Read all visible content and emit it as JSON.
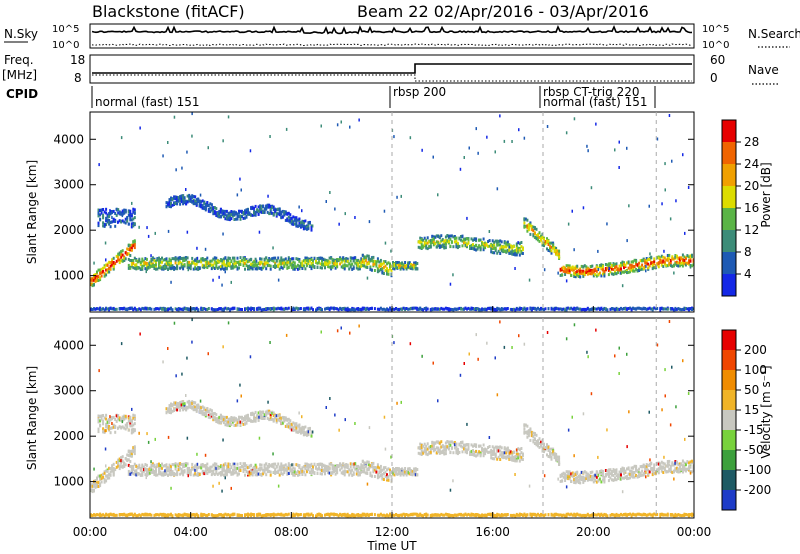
{
  "header": {
    "title_left": "Blackstone (fitACF)",
    "title_right": "Beam 22  02/Apr/2016 - 03/Apr/2016"
  },
  "noise": {
    "left_label": "N.Sky",
    "right_label": "N.Search",
    "tick_top": "10^5",
    "tick_bottom": "10^0"
  },
  "freq": {
    "left_label_1": "Freq.",
    "left_label_2": "[MHz]",
    "right_label": "Nave",
    "left_ticks": [
      "18",
      "8"
    ],
    "right_ticks": [
      "60",
      "0"
    ]
  },
  "cpid": {
    "label": "CPID",
    "segments": [
      {
        "label": "normal (fast) 151",
        "start_h": 0.0
      },
      {
        "label": "rbsp 200",
        "start_h": 12.0
      },
      {
        "label": "rbsp CT-trig 220",
        "start_h": 18.0
      },
      {
        "label": "normal (fast) 151",
        "start_h": 18.0
      }
    ]
  },
  "chart_data": [
    {
      "type": "heatmap",
      "name": "power",
      "ylabel": "Slant Range [km]",
      "ylim": [
        200,
        4600
      ],
      "yticks": [
        1000,
        2000,
        3000,
        4000
      ],
      "xlim_h": [
        0,
        24
      ],
      "xticks": [
        "00:00",
        "04:00",
        "08:00",
        "12:00",
        "16:00",
        "20:00",
        "00:00"
      ],
      "colorbar_label": "Power [dB]",
      "colorbar_ticks": [
        "4",
        "8",
        "12",
        "16",
        "20",
        "24",
        "28"
      ],
      "colorbar_colors": [
        "#1428e6",
        "#1e5ab4",
        "#3c8c78",
        "#5ab446",
        "#dcdc00",
        "#f0a000",
        "#f06400",
        "#e60000"
      ]
    },
    {
      "type": "heatmap",
      "name": "velocity",
      "ylabel": "Slant Range [km]",
      "ylim": [
        200,
        4600
      ],
      "yticks": [
        1000,
        2000,
        3000,
        4000
      ],
      "xlim_h": [
        0,
        24
      ],
      "xticks": [
        "00:00",
        "04:00",
        "08:00",
        "12:00",
        "16:00",
        "20:00",
        "00:00"
      ],
      "xlabel": "Time UT",
      "colorbar_label": "Velocity [m s⁻¹]",
      "colorbar_ticks": [
        "200",
        "100",
        "50",
        "15",
        "-15",
        "-50",
        "-100",
        "-200"
      ],
      "colorbar_colors": [
        "#1e3cc8",
        "#1e5a64",
        "#3ca03c",
        "#78d23c",
        "#c8c8c0",
        "#f0b428",
        "#f08c00",
        "#f04600",
        "#e60000"
      ]
    }
  ]
}
